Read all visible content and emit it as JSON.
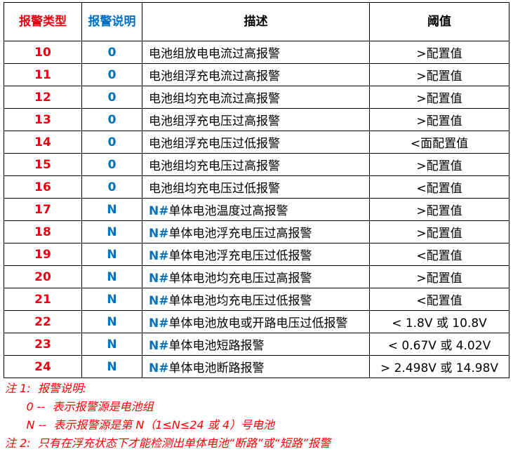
{
  "headers": [
    "报警类型",
    "报警说明",
    "描述",
    "阈值"
  ],
  "rows": [
    {
      "type": "10",
      "src": "0",
      "prefix": "",
      "desc": "电池组放电电流过高报警",
      "thr": ">配置值"
    },
    {
      "type": "11",
      "src": "0",
      "prefix": "",
      "desc": "电池组浮充电流过高报警",
      "thr": ">配置值"
    },
    {
      "type": "12",
      "src": "0",
      "prefix": "",
      "desc": "电池组均充电流过高报警",
      "thr": ">配置值"
    },
    {
      "type": "13",
      "src": "0",
      "prefix": "",
      "desc": "电池组浮充电压过高报警",
      "thr": ">配置值"
    },
    {
      "type": "14",
      "src": "0",
      "prefix": "",
      "desc": "电池组浮充电压过低报警",
      "thr": "<面配置值"
    },
    {
      "type": "15",
      "src": "0",
      "prefix": "",
      "desc": "电池组均充电压过高报警",
      "thr": ">配置值"
    },
    {
      "type": "16",
      "src": "0",
      "prefix": "",
      "desc": "电池组均充电压过低报警",
      "thr": "<配置值"
    },
    {
      "type": "17",
      "src": "N",
      "prefix": "N#",
      "desc": "单体电池温度过高报警",
      "thr": ">配置值"
    },
    {
      "type": "18",
      "src": "N",
      "prefix": "N#",
      "desc": "单体电池浮充电压过高报警",
      "thr": ">配置值"
    },
    {
      "type": "19",
      "src": "N",
      "prefix": "N#",
      "desc": "单体电池浮充电压过低报警",
      "thr": "<配置值"
    },
    {
      "type": "20",
      "src": "N",
      "prefix": "N#",
      "desc": "单体电池均充电压过高报警",
      "thr": ">配置值"
    },
    {
      "type": "21",
      "src": "N",
      "prefix": "N#",
      "desc": "单体电池均充电压过低报警",
      "thr": "<配置值"
    },
    {
      "type": "22",
      "src": "N",
      "prefix": "N#",
      "desc": "单体电池放电或开路电压过低报警",
      "thr": "< 1.8V 或 10.8V"
    },
    {
      "type": "23",
      "src": "N",
      "prefix": "N#",
      "desc": "单体电池短路报警",
      "thr": "< 0.67V 或 4.02V"
    },
    {
      "type": "24",
      "src": "N",
      "prefix": "N#",
      "desc": "单体电池断路报警",
      "thr": "> 2.498V  或 14.98V"
    }
  ],
  "notes": [
    "注 1:  报警说明:",
    "      0 --  表示报警源是电池组",
    "      N --  表示报警源是第 N（1≤N≤24 或 4）号电池",
    "注 2:  只有在浮充状态下才能检测出单体电池“断路”或“短路”报警"
  ],
  "colors": {
    "type": "#e60012",
    "source": "#0070c0",
    "notes": "#ff0000"
  }
}
